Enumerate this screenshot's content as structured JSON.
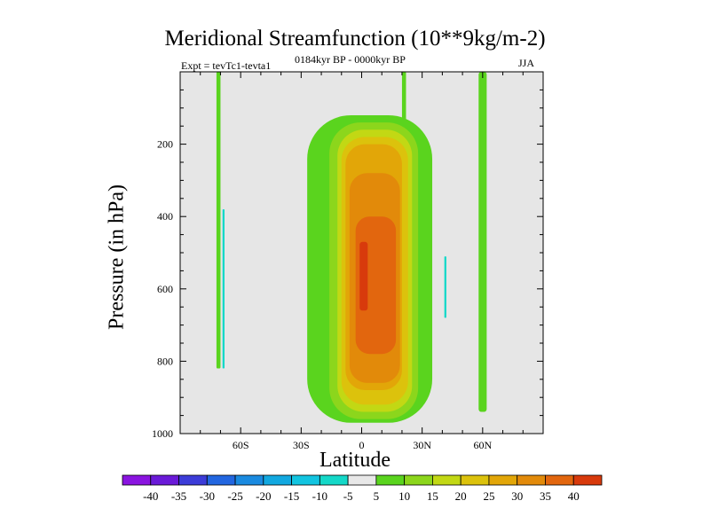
{
  "chart_data": {
    "type": "heatmap",
    "title": "Meridional Streamfunction (10**9kg/m-2)",
    "subtitle": "0184kyr BP - 0000kyr BP",
    "left_string": "Expt = tevTc1-tevta1",
    "right_string": "JJA",
    "xlabel": "Latitude",
    "ylabel": "Pressure (in hPa)",
    "x_range": [
      -90,
      90
    ],
    "y_range": [
      0,
      1000
    ],
    "y_inverted": true,
    "x_ticks": [
      {
        "value": -60,
        "label": "60S"
      },
      {
        "value": -30,
        "label": "30S"
      },
      {
        "value": 0,
        "label": "0"
      },
      {
        "value": 30,
        "label": "30N"
      },
      {
        "value": 60,
        "label": "60N"
      }
    ],
    "y_ticks": [
      {
        "value": 200,
        "label": "200"
      },
      {
        "value": 400,
        "label": "400"
      },
      {
        "value": 600,
        "label": "600"
      },
      {
        "value": 800,
        "label": "800"
      },
      {
        "value": 1000,
        "label": "1000"
      }
    ],
    "colorbar": {
      "labels": [
        "-40",
        "-35",
        "-30",
        "-25",
        "-20",
        "-15",
        "-10",
        "-5",
        "5",
        "10",
        "15",
        "20",
        "25",
        "30",
        "35",
        "40"
      ],
      "colors": [
        "#8a14e0",
        "#6a1ad8",
        "#3c3cd8",
        "#2266e0",
        "#1a8ae0",
        "#12a8e0",
        "#12c4e0",
        "#14d8c8",
        "#e8e8e8",
        "#5ad41e",
        "#8cd61c",
        "#c2d814",
        "#dcc20c",
        "#e2a608",
        "#e28a0a",
        "#e2660e",
        "#d83a0c"
      ]
    },
    "contour_fields": [
      {
        "name": "thin-band-far-south",
        "level": "5",
        "lat_min": -72,
        "lat_max": -70,
        "p_top": 0,
        "p_bottom": 820
      },
      {
        "name": "thin-negative-far-south",
        "level": "-5",
        "lat_min": -69,
        "lat_max": -68,
        "p_top": 380,
        "p_bottom": 820
      },
      {
        "name": "tropical-cell-outer",
        "level": "5",
        "lat_min": -27,
        "lat_max": 35,
        "p_top": 120,
        "p_bottom": 970
      },
      {
        "name": "tropical-cell-10",
        "level": "10",
        "lat_min": -16,
        "lat_max": 28,
        "p_top": 140,
        "p_bottom": 960
      },
      {
        "name": "tropical-cell-15",
        "level": "15",
        "lat_min": -12,
        "lat_max": 25,
        "p_top": 160,
        "p_bottom": 940
      },
      {
        "name": "tropical-cell-20",
        "level": "20",
        "lat_min": -10,
        "lat_max": 23,
        "p_top": 180,
        "p_bottom": 920
      },
      {
        "name": "tropical-cell-25",
        "level": "25",
        "lat_min": -8,
        "lat_max": 20,
        "p_top": 200,
        "p_bottom": 880
      },
      {
        "name": "tropical-cell-30",
        "level": "30",
        "lat_min": -6,
        "lat_max": 19,
        "p_top": 280,
        "p_bottom": 860
      },
      {
        "name": "tropical-cell-35",
        "level": "35",
        "lat_min": -3,
        "lat_max": 17,
        "p_top": 400,
        "p_bottom": 780
      },
      {
        "name": "tropical-cell-40",
        "level": "40",
        "lat_min": -1,
        "lat_max": 3,
        "p_top": 470,
        "p_bottom": 660
      },
      {
        "name": "subtropical-band-north",
        "level": "5",
        "lat_min": 20,
        "lat_max": 22,
        "p_top": 0,
        "p_bottom": 150
      },
      {
        "name": "thin-negative-mid-north",
        "level": "-5",
        "lat_min": 41,
        "lat_max": 42,
        "p_top": 510,
        "p_bottom": 680
      },
      {
        "name": "high-lat-band-north",
        "level": "5",
        "lat_min": 58,
        "lat_max": 62,
        "p_top": 0,
        "p_bottom": 940
      }
    ]
  }
}
